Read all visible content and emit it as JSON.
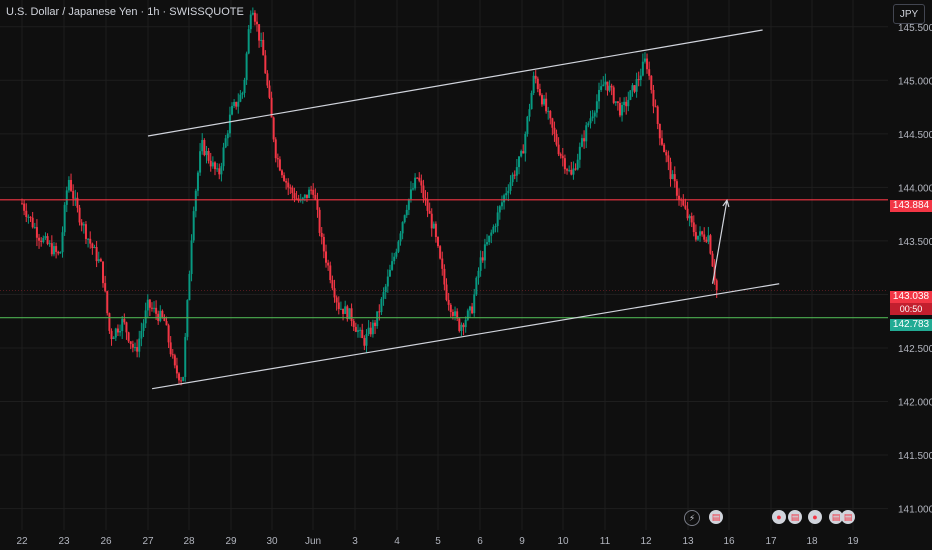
{
  "header": {
    "title": "U.S. Dollar / Japanese Yen · 1h · SWISSQUOTE",
    "currency": "JPY"
  },
  "price_tags": {
    "resistance": "143.884",
    "current": "143.038",
    "countdown": "00:50",
    "support": "142.783"
  },
  "colors": {
    "bg": "#0f0f0f",
    "up": "#089981",
    "down": "#f23645",
    "resistance": "#f23645",
    "support": "#4caf50",
    "trendline": "#d1d4dc",
    "grid": "#1e1e1e"
  },
  "events": [
    "lightning-icon",
    "flag-icon",
    "flag-icon",
    "flag-icon",
    "flag-icon",
    "flag-icon"
  ],
  "chart_data": {
    "type": "candlestick",
    "title": "U.S. Dollar / Japanese Yen · 1h · SWISSQUOTE",
    "y_ticks": [
      141.0,
      141.5,
      142.0,
      142.5,
      143.0,
      143.5,
      144.0,
      144.5,
      145.0,
      145.5
    ],
    "y_tick_labels": [
      "141.000",
      "141.500",
      "142.000",
      "142.500",
      "143.000",
      "143.500",
      "144.000",
      "144.500",
      "145.000",
      "145.500"
    ],
    "ylim": [
      140.8,
      145.75
    ],
    "x_labels": [
      "22",
      "23",
      "26",
      "27",
      "28",
      "29",
      "30",
      "Jun",
      "3",
      "4",
      "5",
      "6",
      "9",
      "10",
      "11",
      "12",
      "13",
      "16",
      "17",
      "18",
      "19"
    ],
    "x_label_index": [
      0,
      1,
      2,
      3,
      4,
      5,
      6,
      7,
      8,
      9,
      10,
      11,
      12,
      13,
      14,
      15,
      16,
      17,
      18,
      19,
      20
    ],
    "horizontal_levels": [
      {
        "value": 143.884,
        "color": "#f23645"
      },
      {
        "value": 142.783,
        "color": "#4caf50"
      }
    ],
    "channel": {
      "upper": [
        [
          3.0,
          144.48
        ],
        [
          17.8,
          145.47
        ]
      ],
      "lower": [
        [
          3.1,
          142.12
        ],
        [
          18.2,
          143.1
        ]
      ]
    },
    "projection_arrow": [
      [
        16.6,
        143.1
      ],
      [
        16.95,
        143.88
      ]
    ],
    "price_path": [
      [
        0.0,
        143.85
      ],
      [
        0.4,
        143.55
      ],
      [
        0.9,
        143.35
      ],
      [
        1.1,
        144.1
      ],
      [
        1.3,
        143.8
      ],
      [
        1.6,
        143.5
      ],
      [
        1.9,
        143.25
      ],
      [
        2.1,
        142.6
      ],
      [
        2.4,
        142.75
      ],
      [
        2.7,
        142.45
      ],
      [
        3.0,
        142.9
      ],
      [
        3.4,
        142.75
      ],
      [
        3.65,
        142.3
      ],
      [
        3.85,
        142.2
      ],
      [
        4.1,
        143.8
      ],
      [
        4.3,
        144.4
      ],
      [
        4.7,
        144.1
      ],
      [
        5.0,
        144.7
      ],
      [
        5.3,
        144.9
      ],
      [
        5.5,
        145.75
      ],
      [
        5.8,
        145.2
      ],
      [
        6.1,
        144.3
      ],
      [
        6.4,
        144.0
      ],
      [
        6.7,
        143.85
      ],
      [
        7.0,
        144.0
      ],
      [
        7.2,
        143.5
      ],
      [
        7.6,
        142.9
      ],
      [
        7.9,
        142.8
      ],
      [
        8.2,
        142.55
      ],
      [
        8.5,
        142.75
      ],
      [
        8.9,
        143.3
      ],
      [
        9.2,
        143.8
      ],
      [
        9.5,
        144.1
      ],
      [
        9.9,
        143.6
      ],
      [
        10.2,
        143.0
      ],
      [
        10.5,
        142.7
      ],
      [
        10.8,
        142.85
      ],
      [
        11.0,
        143.3
      ],
      [
        11.3,
        143.6
      ],
      [
        11.6,
        143.95
      ],
      [
        12.0,
        144.3
      ],
      [
        12.3,
        145.05
      ],
      [
        12.6,
        144.7
      ],
      [
        12.9,
        144.35
      ],
      [
        13.2,
        144.1
      ],
      [
        13.6,
        144.6
      ],
      [
        14.0,
        145.0
      ],
      [
        14.4,
        144.7
      ],
      [
        14.8,
        145.0
      ],
      [
        15.0,
        145.2
      ],
      [
        15.3,
        144.55
      ],
      [
        15.6,
        144.1
      ],
      [
        15.9,
        143.8
      ],
      [
        16.2,
        143.55
      ],
      [
        16.5,
        143.55
      ],
      [
        16.7,
        143.04
      ]
    ]
  }
}
